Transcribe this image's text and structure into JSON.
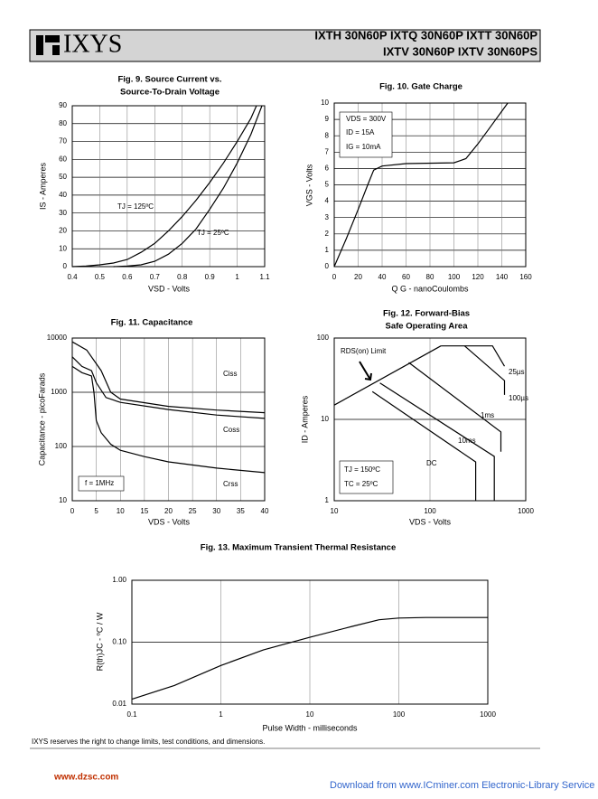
{
  "header": {
    "logo": "IXYS",
    "parts": [
      "IXTH 30N60P  IXTQ 30N60P IXTT 30N60P",
      "IXTV 30N60P  IXTV 30N60PS"
    ]
  },
  "chart_data": [
    {
      "type": "line",
      "title": [
        "Fig. 9. Source Current vs.",
        "Source-To-Drain Voltage"
      ],
      "x_label": "VSD - Volts",
      "y_label": "IS - Amperes",
      "xlim": [
        0.4,
        1.1
      ],
      "xticks": [
        0.4,
        0.5,
        0.6,
        0.7,
        0.8,
        0.9,
        1,
        1.1
      ],
      "ylim": [
        0,
        90
      ],
      "yticks": [
        0,
        10,
        20,
        30,
        40,
        50,
        60,
        70,
        80,
        90
      ],
      "grid": true,
      "annotations": [
        "TJ = 125ºC",
        "TJ = 25ºC"
      ],
      "series": [
        {
          "color": "#000000",
          "x": [
            0.4,
            0.45,
            0.5,
            0.55,
            0.6,
            0.65,
            0.7,
            0.75,
            0.8,
            0.85,
            0.9,
            0.95,
            1.0,
            1.05,
            1.07
          ],
          "values": [
            0,
            0.3,
            1,
            2,
            4,
            8,
            13,
            20,
            28,
            37,
            47,
            58,
            70,
            83,
            90
          ]
        },
        {
          "color": "#000000",
          "x": [
            0.55,
            0.6,
            0.65,
            0.7,
            0.75,
            0.8,
            0.85,
            0.9,
            0.95,
            1.0,
            1.05,
            1.09
          ],
          "values": [
            0,
            0.3,
            1,
            3,
            7,
            13,
            21,
            32,
            44,
            58,
            74,
            90
          ]
        }
      ]
    },
    {
      "type": "line",
      "title": [
        "Fig. 10. Gate Charge"
      ],
      "x_label": "Q G - nanoCoulombs",
      "y_label": "VGS - Volts",
      "xlim": [
        0,
        160
      ],
      "xticks": [
        0,
        20,
        40,
        60,
        80,
        100,
        120,
        140,
        160
      ],
      "ylim": [
        0,
        10
      ],
      "yticks": [
        0,
        1,
        2,
        3,
        4,
        5,
        6,
        7,
        8,
        9,
        10
      ],
      "grid": true,
      "annotations": [
        "VDS = 300V",
        "ID = 15A",
        "IG = 10mA"
      ],
      "series": [
        {
          "color": "#000000",
          "x": [
            0,
            10,
            20,
            28,
            33,
            40,
            60,
            100,
            110,
            120,
            130,
            145
          ],
          "values": [
            0,
            1.7,
            3.5,
            5,
            5.9,
            6.15,
            6.3,
            6.35,
            6.6,
            7.5,
            8.5,
            10
          ]
        }
      ]
    },
    {
      "type": "line",
      "title": [
        "Fig. 11. Capacitance"
      ],
      "x_label": "VDS - Volts",
      "y_label": "Capacitance - picoFarads",
      "xlim": [
        0,
        40
      ],
      "xticks": [
        0,
        5,
        10,
        15,
        20,
        25,
        30,
        35,
        40
      ],
      "ylim": [
        10,
        10000
      ],
      "yticks": [
        10,
        100,
        1000,
        10000
      ],
      "ylog": true,
      "grid": true,
      "annotations": [
        "f = 1MHz"
      ],
      "series": [
        {
          "name": "Ciss",
          "color": "#000000",
          "x": [
            0,
            3,
            6,
            8,
            10,
            20,
            30,
            40
          ],
          "values": [
            8500,
            6000,
            2500,
            1000,
            750,
            550,
            470,
            420
          ]
        },
        {
          "name": "Coss",
          "color": "#000000",
          "x": [
            0,
            2,
            4,
            5,
            7,
            10,
            20,
            30,
            40
          ],
          "values": [
            4500,
            3000,
            2500,
            1500,
            800,
            650,
            480,
            380,
            330
          ]
        },
        {
          "name": "Crss",
          "color": "#000000",
          "x": [
            0,
            2,
            4,
            4.5,
            5,
            6,
            8,
            10,
            15,
            20,
            30,
            40
          ],
          "values": [
            3000,
            2300,
            2000,
            1000,
            300,
            180,
            110,
            85,
            65,
            52,
            40,
            33
          ]
        }
      ]
    },
    {
      "type": "line",
      "title": [
        "Fig. 12. Forward-Bias",
        "Safe Operating Area"
      ],
      "x_label": "VDS - Volts",
      "y_label": "ID - Amperes",
      "xlim": [
        10,
        1000
      ],
      "xticks": [
        10,
        100,
        1000
      ],
      "xlog": true,
      "ylim": [
        1,
        100
      ],
      "yticks": [
        1,
        10,
        100
      ],
      "ylog": true,
      "grid": true,
      "annotations": [
        "TJ = 150ºC",
        "TC = 25ºC"
      ],
      "series": [
        {
          "name": "RDS(on) Limit",
          "color": "#000000",
          "x": [
            10,
            130
          ],
          "values": [
            15,
            80
          ]
        },
        {
          "name": "25µs",
          "color": "#000000",
          "x": [
            130,
            450,
            600
          ],
          "values": [
            80,
            80,
            45
          ]
        },
        {
          "name": "100µs",
          "color": "#000000",
          "x": [
            230,
            600,
            600
          ],
          "values": [
            80,
            30,
            20
          ]
        },
        {
          "name": "1ms",
          "color": "#000000",
          "x": [
            60,
            550,
            550
          ],
          "values": [
            50,
            7,
            4
          ]
        },
        {
          "name": "10ms",
          "color": "#000000",
          "x": [
            30,
            470,
            470
          ],
          "values": [
            28,
            3.5,
            1
          ]
        },
        {
          "name": "DC",
          "color": "#000000",
          "x": [
            25,
            300,
            300
          ],
          "values": [
            22,
            3,
            1
          ]
        }
      ]
    },
    {
      "type": "line",
      "title": [
        "Fig. 13. Maximum Transient Thermal Resistance"
      ],
      "x_label": "Pulse Width - milliseconds",
      "y_label": "R(th)JC - ºC / W",
      "xlim": [
        0.1,
        1000
      ],
      "xticks": [
        0.1,
        1,
        10,
        100,
        1000
      ],
      "xlog": true,
      "ylim": [
        0.01,
        1
      ],
      "yticks": [
        0.01,
        {
          "value": 0.1,
          "label": "0.10"
        },
        {
          "value": 1,
          "label": "1.00"
        }
      ],
      "ylog": true,
      "grid": true,
      "series": [
        {
          "color": "#000000",
          "x": [
            0.1,
            0.3,
            1,
            3,
            10,
            30,
            60,
            100,
            200,
            1000
          ],
          "values": [
            0.012,
            0.02,
            0.042,
            0.075,
            0.12,
            0.18,
            0.23,
            0.245,
            0.25,
            0.25
          ]
        }
      ]
    }
  ],
  "footer": {
    "note": "IXYS reserves the right to change limits, test conditions, and dimensions.",
    "watermark": "www.dzsc.com",
    "download": "Download from www.ICminer.com Electronic-Library Service"
  }
}
